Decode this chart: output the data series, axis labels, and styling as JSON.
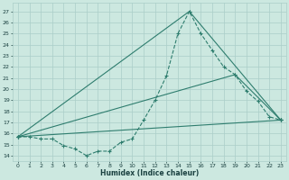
{
  "title": "",
  "xlabel": "Humidex (Indice chaleur)",
  "ylabel": "",
  "bg_color": "#cce8e0",
  "grid_color": "#aacec8",
  "line_color": "#2e7d6e",
  "xlim": [
    -0.5,
    23.5
  ],
  "ylim": [
    13.5,
    27.8
  ],
  "yticks": [
    14,
    15,
    16,
    17,
    18,
    19,
    20,
    21,
    22,
    23,
    24,
    25,
    26,
    27
  ],
  "xticks": [
    0,
    1,
    2,
    3,
    4,
    5,
    6,
    7,
    8,
    9,
    10,
    11,
    12,
    13,
    14,
    15,
    16,
    17,
    18,
    19,
    20,
    21,
    22,
    23
  ],
  "series": [
    {
      "x": [
        0,
        1,
        2,
        3,
        4,
        5,
        6,
        7,
        8,
        9,
        10,
        11,
        12,
        13,
        14,
        15,
        16,
        17,
        18,
        19,
        20,
        21,
        22,
        23
      ],
      "y": [
        15.7,
        15.7,
        15.5,
        15.5,
        14.9,
        14.6,
        14.0,
        14.4,
        14.4,
        15.2,
        15.5,
        17.2,
        19.0,
        21.2,
        25.0,
        27.0,
        25.0,
        23.5,
        22.0,
        21.3,
        19.8,
        18.9,
        17.5,
        17.2
      ],
      "linestyle": "--",
      "markers": true
    },
    {
      "x": [
        0,
        23
      ],
      "y": [
        15.7,
        17.2
      ],
      "linestyle": "-",
      "markers": true
    },
    {
      "x": [
        0,
        19,
        23
      ],
      "y": [
        15.7,
        21.3,
        17.2
      ],
      "linestyle": "-",
      "markers": true
    },
    {
      "x": [
        0,
        15,
        23
      ],
      "y": [
        15.7,
        27.0,
        17.2
      ],
      "linestyle": "-",
      "markers": true
    }
  ]
}
